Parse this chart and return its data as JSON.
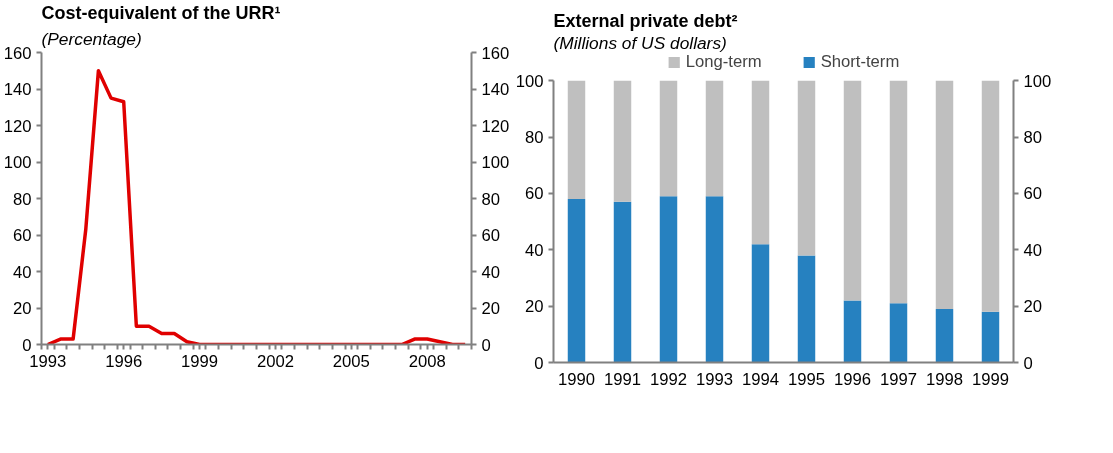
{
  "chart_data": [
    {
      "type": "line",
      "title": "Cost-equivalent of the URR¹",
      "subtitle": "(Percentage)",
      "x": [
        1993,
        1993.5,
        1994,
        1994.5,
        1995,
        1995.5,
        1996,
        1996.5,
        1997,
        1997.5,
        1998,
        1998.5,
        1999,
        1999.5,
        2000,
        2000.5,
        2001,
        2001.5,
        2002,
        2002.5,
        2003,
        2003.5,
        2004,
        2004.5,
        2005,
        2005.5,
        2006,
        2006.5,
        2007,
        2007.5,
        2008,
        2008.5,
        2009,
        2009.5
      ],
      "series": [
        {
          "color": "#e00000",
          "values": [
            0,
            3,
            3,
            63,
            150,
            135,
            133,
            10,
            10,
            6,
            6,
            1.5,
            0,
            0,
            0,
            0,
            0,
            0,
            0,
            0,
            0,
            0,
            0,
            0,
            0,
            0,
            0,
            0,
            0,
            3,
            3,
            1.5,
            0,
            0
          ]
        }
      ],
      "xlim": [
        1992.75,
        2009.75
      ],
      "xticks": [
        1993,
        1996,
        1999,
        2002,
        2005,
        2008,
        {
          "value": 1992.75,
          "label": null
        },
        {
          "value": 1993.25,
          "label": null
        },
        {
          "value": 1993.75,
          "label": null
        },
        {
          "value": 1994.25,
          "label": null
        },
        {
          "value": 1994.75,
          "label": null
        },
        {
          "value": 1995.25,
          "label": null
        },
        {
          "value": 1995.75,
          "label": null
        },
        {
          "value": 1996.25,
          "label": null
        },
        {
          "value": 1996.75,
          "label": null
        },
        {
          "value": 1997.25,
          "label": null
        },
        {
          "value": 1997.75,
          "label": null
        },
        {
          "value": 1998.25,
          "label": null
        },
        {
          "value": 1998.75,
          "label": null
        },
        {
          "value": 1999.25,
          "label": null
        },
        {
          "value": 1999.75,
          "label": null
        },
        {
          "value": 2000.25,
          "label": null
        },
        {
          "value": 2000.75,
          "label": null
        },
        {
          "value": 2001.25,
          "label": null
        },
        {
          "value": 2001.75,
          "label": null
        },
        {
          "value": 2002.25,
          "label": null
        },
        {
          "value": 2002.75,
          "label": null
        },
        {
          "value": 2003.25,
          "label": null
        },
        {
          "value": 2003.75,
          "label": null
        },
        {
          "value": 2004.25,
          "label": null
        },
        {
          "value": 2004.75,
          "label": null
        },
        {
          "value": 2005.25,
          "label": null
        },
        {
          "value": 2005.75,
          "label": null
        },
        {
          "value": 2006.25,
          "label": null
        },
        {
          "value": 2006.75,
          "label": null
        },
        {
          "value": 2007.25,
          "label": null
        },
        {
          "value": 2007.75,
          "label": null
        },
        {
          "value": 2008.25,
          "label": null
        },
        {
          "value": 2008.75,
          "label": null
        },
        {
          "value": 2009.25,
          "label": null
        },
        {
          "value": 2009.75,
          "label": null
        }
      ],
      "ylim": [
        0,
        160
      ],
      "yticks": [
        0,
        20,
        40,
        60,
        80,
        100,
        120,
        140,
        160
      ],
      "y2lim": [
        0,
        160
      ],
      "y2ticks": [
        0,
        20,
        40,
        60,
        80,
        100,
        120,
        140,
        160
      ],
      "grid": false,
      "legend": false,
      "marker": "none",
      "line_style": "solid"
    },
    {
      "type": "bar",
      "title": "External private  debt²",
      "subtitle": "(Millions of US dollars)",
      "stacked": true,
      "categories": [
        "1990",
        "1991",
        "1992",
        "1993",
        "1994",
        "1995",
        "1996",
        "1997",
        "1998",
        "1999"
      ],
      "series": [
        {
          "name": "Short-term",
          "color": "#2681c0",
          "values": [
            58,
            57,
            59,
            59,
            42,
            38,
            22,
            21,
            19,
            18
          ]
        },
        {
          "name": "Long-term",
          "color": "#bfbfbf",
          "values": [
            42,
            43,
            41,
            41,
            58,
            62,
            78,
            79,
            81,
            82
          ]
        }
      ],
      "ylim": [
        0,
        100
      ],
      "yticks": [
        0,
        20,
        40,
        60,
        80,
        100
      ],
      "y2lim": [
        0,
        100
      ],
      "y2ticks": [
        0,
        20,
        40,
        60,
        80,
        100
      ],
      "grid": false,
      "legend": "top"
    }
  ]
}
